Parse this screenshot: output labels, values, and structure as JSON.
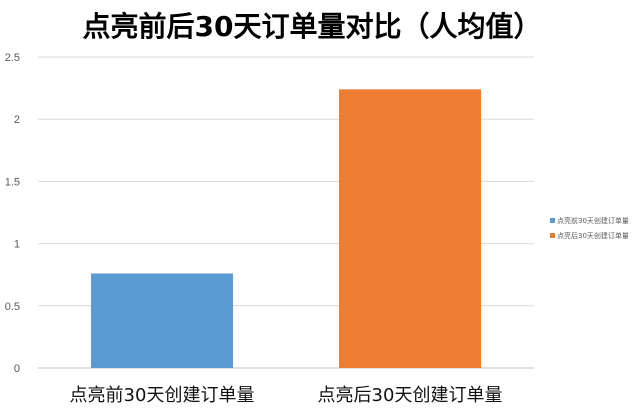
{
  "chart_data": {
    "type": "bar",
    "title": "点亮前后30天订单量对比（人均值）",
    "categories": [
      "点亮前30天创建订单量",
      "点亮后30天创建订单量"
    ],
    "series": [
      {
        "name": "点亮前30天创建订单量",
        "values": [
          0.76,
          null
        ],
        "color": "#5B9BD5"
      },
      {
        "name": "点亮后30天创建订单量",
        "values": [
          null,
          2.24
        ],
        "color": "#ED7D31"
      }
    ],
    "ylim": [
      0,
      2.5
    ],
    "yticks": [
      0,
      0.5,
      1,
      1.5,
      2,
      2.5
    ],
    "ytick_labels": [
      "0",
      "0.5",
      "1",
      "1.5",
      "2",
      "2.5"
    ],
    "grid": true,
    "legend_position": "right"
  }
}
